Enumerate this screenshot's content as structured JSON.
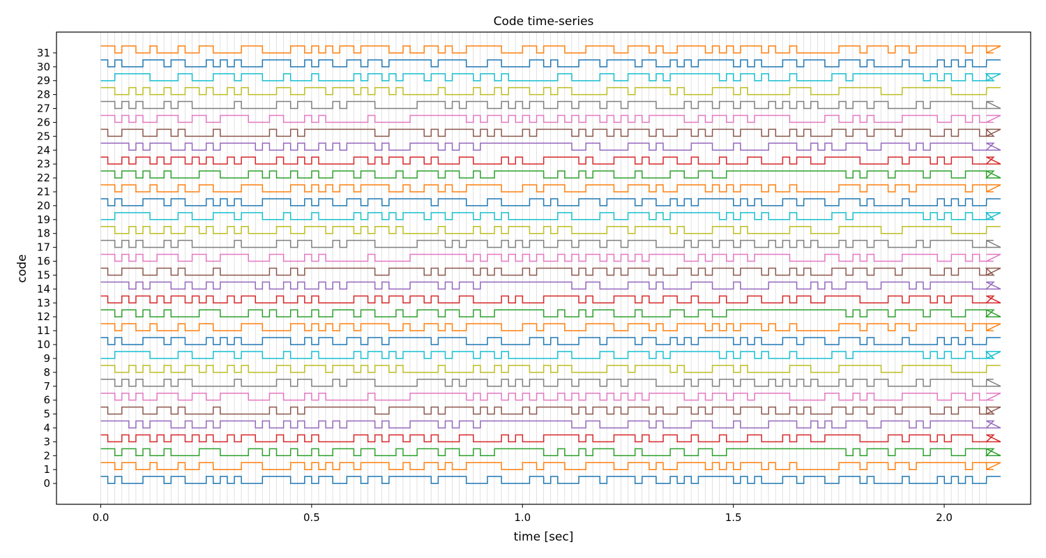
{
  "chart_data": {
    "type": "line",
    "title": "Code time-series",
    "xlabel": "time [sec]",
    "ylabel": "code",
    "xlim": [
      -0.105,
      2.205
    ],
    "ylim": [
      -1.5,
      32.5
    ],
    "xticks": [
      0.0,
      0.5,
      1.0,
      1.5,
      2.0
    ],
    "xtick_labels": [
      "0.0",
      "0.5",
      "1.0",
      "1.5",
      "2.0"
    ],
    "yticks": [
      0,
      1,
      2,
      3,
      4,
      5,
      6,
      7,
      8,
      9,
      10,
      11,
      12,
      13,
      14,
      15,
      16,
      17,
      18,
      19,
      20,
      21,
      22,
      23,
      24,
      25,
      26,
      27,
      28,
      29,
      30,
      31
    ],
    "ytick_labels": [
      "0",
      "1",
      "2",
      "3",
      "4",
      "5",
      "6",
      "7",
      "8",
      "9",
      "10",
      "11",
      "12",
      "13",
      "14",
      "15",
      "16",
      "17",
      "18",
      "19",
      "20",
      "21",
      "22",
      "23",
      "24",
      "25",
      "26",
      "27",
      "28",
      "29",
      "30",
      "31"
    ],
    "grid": {
      "vertical": true,
      "spacing_sec": 0.01667,
      "start": 0.0,
      "end": 2.1
    },
    "step_duration_sec": 0.01667,
    "time_range": [
      0.0,
      2.1
    ],
    "step_amplitude": 0.5,
    "colors": [
      "#1f77b4",
      "#ff7f0e",
      "#2ca02c",
      "#d62728",
      "#9467bd",
      "#8c564b",
      "#e377c2",
      "#7f7f7f",
      "#bcbd22",
      "#17becf"
    ],
    "codes": [
      "101000111011000101010001111001011001101101111110111100011000011010001110111101100101011111010100011011100111010000100001010100111",
      "110110010001001100001110000110101011011110010011010011111000110111000111100111010011110101011101001000000111011101101111111011001",
      "110110100100001110000110100100100111011000100111011001001111111001001011100010000110011001111111111111111101011101111011100111010",
      "100101101011010100101100010010100000110101101101000110000101000111110100011101001100100010001100010110011111000011011101011100010",
      "111101011100100101111101001010010101111010001111010110111111111111100110000111010000111000100001111001010011100111101011111100010",
      "100111001101000010000000100101111111111001111101011110101000101111101011010111010011010111011101001010001101101110111100101110101",
      "110101001110011001111000110001010000001000001111111101011010101001010110101010111110010110110111110000011001010000111110011010001",
      "110101000101100000010000011011000101111000000111101011100101011001101110110111100001011011011001010101000101101100001011111100110",
      "110010100100110100101000011001110111010110100000100001001011100101100000111011111010000111010000001110000111111000111111100000111",
      "001111100001100011101110001000100000101101011101101110110100000001100001100111010111111101011010001000001101111111111010100100101",
      "101000111011000101010001111001011001101101111110111100011000011010001110111101100101011111010100011011100111010000100001010100111",
      "110110010001001100001110000110101011011110010011010011111000110111000111100111010011110101011101001000000111011101101111111011001",
      "110110100100001110000110100100100111011000100111011001001111111001001011100010000110011001111111111111111101011101111011100111010",
      "100101101011010100101100010010100000110101101101000110000101000111110100011101001100100010001100010110011111000011011101011100010",
      "111101011100100101111101001010010101111010001111010110111111111111100110000111010000111000100001111001010011100111101011111100010",
      "100111001101000010000000100101111111111001111101011110101000101111101011010111010011010111011101001010001101101110111100101110101",
      "110101001110011001111000110001010000001000001111111101011010101001010110101010111110010110110111110000011001010000111110011010001",
      "110101000101100000010000011011000101111000000111101011100101011001101110110111100001011011011001010101000101101100001011111100110",
      "110010100100110100101000011001110111010110100000100001001011100101100000111011111010000111010000001110000111111000111111100000111",
      "001111100001100011101110001000100000101101011101101110110100000001100001100111010111111101011010001000001101111111111010100100101",
      "101000111011000101010001111001011001101101111110111100011000011010001110111101100101011111010100011011100111010000100001010100111",
      "110110010001001100001110000110101011011110010011010011111000110111000111100111010011110101011101001000000111011101101111111011001",
      "110110100100001110000110100100100111011000100111011001001111111001001011100010000110011001111111111111111101011101111011100111010",
      "100101101011010100101100010010100000110101101101000110000101000111110100011101001100100010001100010110011111000011011101011100010",
      "111101011100100101111101001010010101111010001111010110111111111111100110000111010000111000100001111001010011100111101011111100010",
      "100111001101000010000000100101111111111001111101011110101000101111101011010111010011010111011101001010001101101110111100101110101",
      "110101001110011001111000110001010000001000001111111101011010101001010110101010111110010110110111110000011001010000111110011010001",
      "110101000101100000010000011011000101111000000111101011100101011001101110110111100001011011011001010101000101101100001011111100110",
      "110010100100110100101000011001110111010110100000100001001011100101100000111011111010000111010000001110000111111000111111100000111",
      "001111100001100011101110001000100000101101011101101110110100000001100001100111010111111101011010001000001101111111111010100100101",
      "101000111011000101010001111001011001101101111110111100011000011010001110111101100101011111010100011011100111010000100001010100111",
      "110110010001001100001110000110101011011110010011010011111000110111000111100111010011110101011101001000000111011101101111111011001"
    ]
  }
}
